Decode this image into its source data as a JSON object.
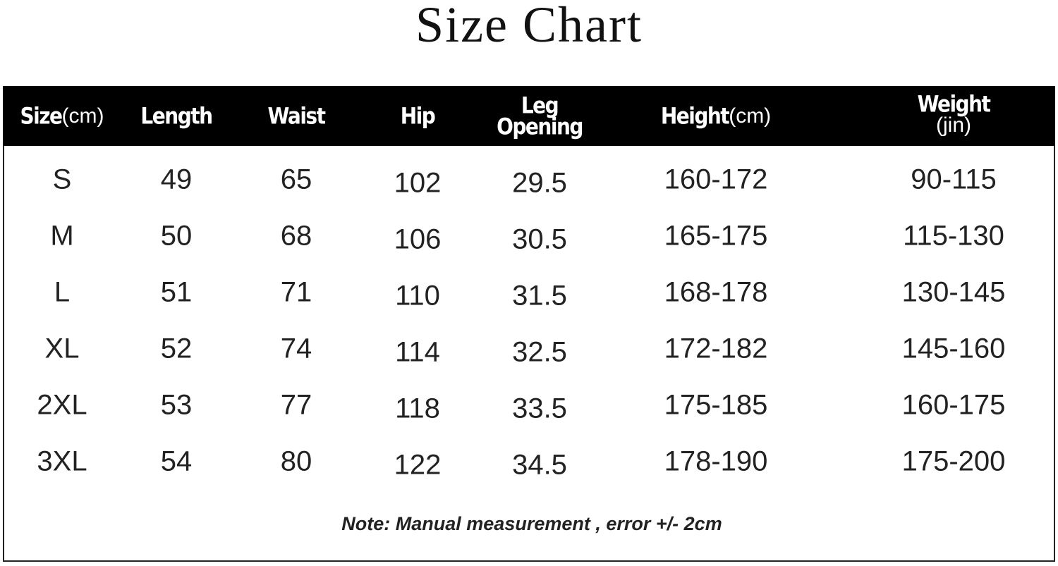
{
  "header": {
    "title": "Size Chart"
  },
  "table": {
    "columns": [
      {
        "label": "Size",
        "unit": "(cm)"
      },
      {
        "label": "Length"
      },
      {
        "label": "Waist"
      },
      {
        "label": "Hip"
      },
      {
        "label": "Leg Opening"
      },
      {
        "label": "Height",
        "unit": "(cm)"
      },
      {
        "label": "Weight",
        "unit": "(jin)"
      }
    ],
    "rows": [
      [
        "S",
        "49",
        "65",
        "102",
        "29.5",
        "160-172",
        "90-115"
      ],
      [
        "M",
        "50",
        "68",
        "106",
        "30.5",
        "165-175",
        "115-130"
      ],
      [
        "L",
        "51",
        "71",
        "110",
        "31.5",
        "168-178",
        "130-145"
      ],
      [
        "XL",
        "52",
        "74",
        "114",
        "32.5",
        "172-182",
        "145-160"
      ],
      [
        "2XL",
        "53",
        "77",
        "118",
        "33.5",
        "175-185",
        "160-175"
      ],
      [
        "3XL",
        "54",
        "80",
        "122",
        "34.5",
        "178-190",
        "175-200"
      ]
    ],
    "note": "Note: Manual measurement , error +/- 2cm"
  }
}
